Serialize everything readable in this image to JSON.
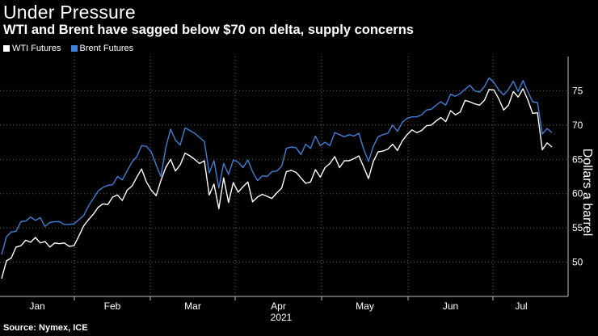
{
  "chart_data": {
    "type": "line",
    "title": "Under Pressure",
    "subtitle": "WTI and Brent have sagged below $70 on delta, supply concerns",
    "xlabel": "2021",
    "ylabel": "Dollars a barrel",
    "ylim": [
      45,
      80
    ],
    "y_ticks": [
      50,
      55,
      60,
      65,
      70,
      75
    ],
    "x_tick_labels": [
      "Jan",
      "Feb",
      "Mar",
      "Apr",
      "May",
      "Jun",
      "Jul"
    ],
    "x_year_label": "2021",
    "source": "Source: Nymex, ICE",
    "series": [
      {
        "name": "WTI Futures",
        "color": "#ffffff",
        "values": [
          47.6,
          50.2,
          50.6,
          52.2,
          52.4,
          53.2,
          52.9,
          53.6,
          52.8,
          53.0,
          52.2,
          52.8,
          52.7,
          52.8,
          52.3,
          52.4,
          53.8,
          55.3,
          56.2,
          57.0,
          58.0,
          58.5,
          58.4,
          59.5,
          59.8,
          59.0,
          60.5,
          61.1,
          62.4,
          63.6,
          61.7,
          60.5,
          59.7,
          61.9,
          63.8,
          65.0,
          63.3,
          64.2,
          65.9,
          65.5,
          65.0,
          64.4,
          64.8,
          59.8,
          61.4,
          57.8,
          62.3,
          58.7,
          61.6,
          60.2,
          61.0,
          61.7,
          58.8,
          59.5,
          59.9,
          59.6,
          59.3,
          60.1,
          60.8,
          63.2,
          63.4,
          63.1,
          62.3,
          61.5,
          61.7,
          63.5,
          62.4,
          63.8,
          64.4,
          65.4,
          63.8,
          64.8,
          64.8,
          65.1,
          65.5,
          63.9,
          62.2,
          64.7,
          66.1,
          66.2,
          66.5,
          67.2,
          66.3,
          67.7,
          68.6,
          69.3,
          68.9,
          69.2,
          69.9,
          70.0,
          70.6,
          71.1,
          70.5,
          72.1,
          71.5,
          71.9,
          73.6,
          73.4,
          73.1,
          72.9,
          73.6,
          75.2,
          75.1,
          73.8,
          72.2,
          72.9,
          74.9,
          74.1,
          75.3,
          73.7,
          71.7,
          71.8,
          66.4,
          67.4,
          66.8
        ]
      },
      {
        "name": "Brent Futures",
        "color": "#3f7fd6",
        "values": [
          51.1,
          53.7,
          54.4,
          54.5,
          55.9,
          56.0,
          56.6,
          56.1,
          56.5,
          55.2,
          55.8,
          55.9,
          55.9,
          55.5,
          55.5,
          55.6,
          56.2,
          56.8,
          58.2,
          59.3,
          60.4,
          60.9,
          61.2,
          61.3,
          62.5,
          62.0,
          63.3,
          64.6,
          65.4,
          67.0,
          66.9,
          66.1,
          64.2,
          62.5,
          66.7,
          69.4,
          67.8,
          67.1,
          69.6,
          69.2,
          68.8,
          68.2,
          67.6,
          63.0,
          64.8,
          60.8,
          64.4,
          62.8,
          64.9,
          64.6,
          63.8,
          64.9,
          63.2,
          61.9,
          62.6,
          62.5,
          63.2,
          63.3,
          64.0,
          66.6,
          66.8,
          66.7,
          65.7,
          67.2,
          66.6,
          68.4,
          67.0,
          67.5,
          67.0,
          68.9,
          68.6,
          68.3,
          68.6,
          68.4,
          68.8,
          66.5,
          64.7,
          66.9,
          68.3,
          68.6,
          68.8,
          70.0,
          69.1,
          70.4,
          71.0,
          71.2,
          71.2,
          71.5,
          72.2,
          72.3,
          72.9,
          73.4,
          72.9,
          74.5,
          74.2,
          74.6,
          75.2,
          75.8,
          75.0,
          74.8,
          75.6,
          76.9,
          76.2,
          75.1,
          74.4,
          75.2,
          76.4,
          74.9,
          76.5,
          74.9,
          73.4,
          73.3,
          68.7,
          69.5,
          68.9
        ]
      }
    ]
  }
}
